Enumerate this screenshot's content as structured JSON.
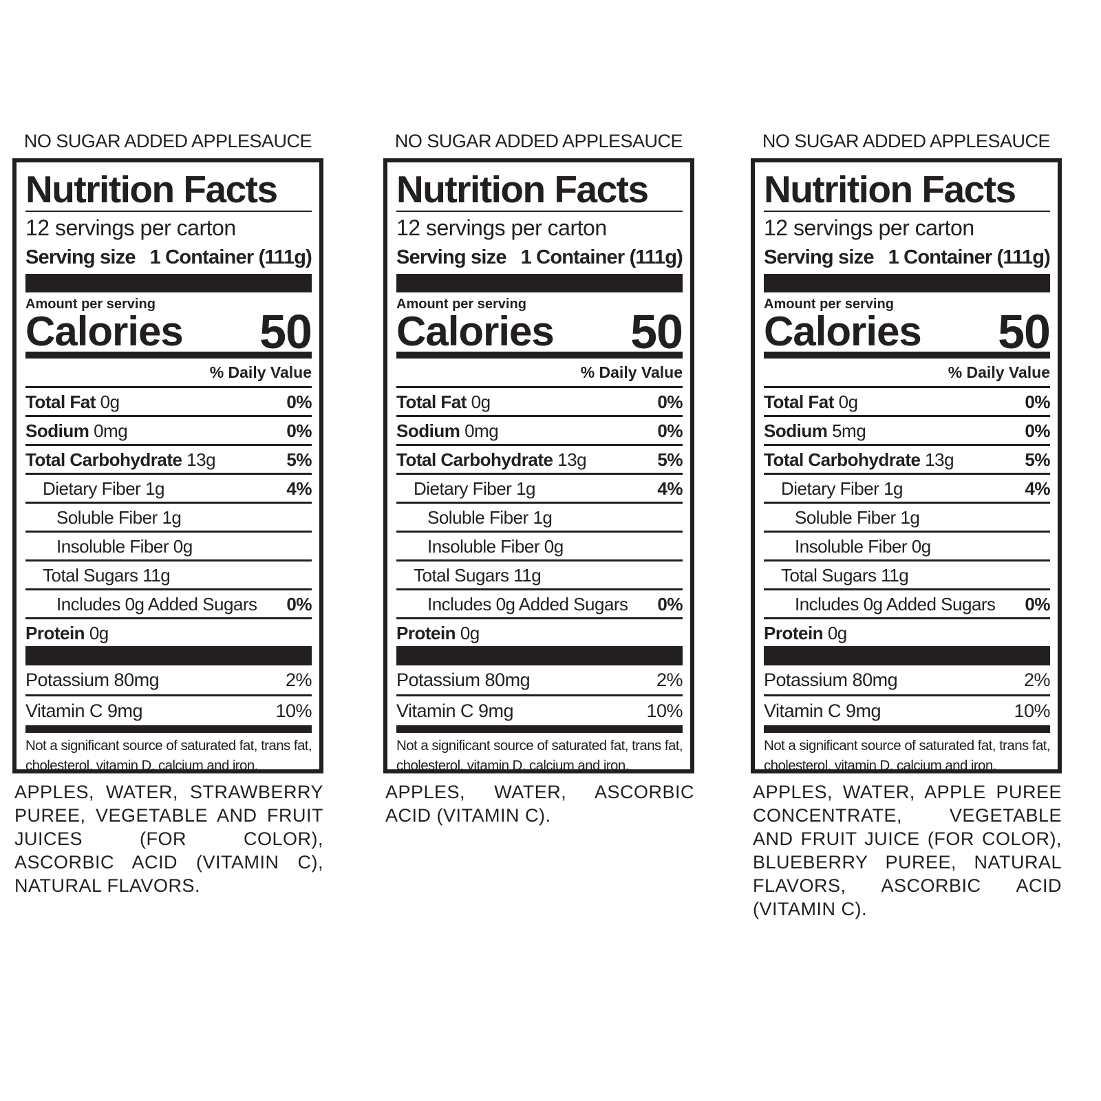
{
  "labels": [
    {
      "heading": "NO SUGAR ADDED APPLESAUCE",
      "title": "Nutrition Facts",
      "servings": "12 servings per carton",
      "serving_size_label": "Serving size",
      "serving_size": "1 Container (111g)",
      "amount_per_serving": "Amount per serving",
      "calories_label": "Calories",
      "calories": "50",
      "daily_value_header": "% Daily Value",
      "nutrients": [
        {
          "name": "Total Fat",
          "amount": "0g",
          "daily_value": "0%"
        },
        {
          "name": "Sodium",
          "amount": "0mg",
          "daily_value": "0%"
        },
        {
          "name": "Total Carbohydrate",
          "amount": "13g",
          "daily_value": "5%"
        },
        {
          "name": "Dietary Fiber",
          "amount": "1g",
          "daily_value": "4%"
        },
        {
          "name": "Soluble Fiber",
          "amount": "1g"
        },
        {
          "name": "Insoluble Fiber",
          "amount": "0g"
        },
        {
          "name": "Total Sugars",
          "amount": "11g"
        },
        {
          "name": "Includes 0g Added Sugars",
          "daily_value": "0%"
        },
        {
          "name": "Protein",
          "amount": "0g"
        }
      ],
      "vitamins": [
        {
          "name": "Potassium 80mg",
          "daily_value": "2%"
        },
        {
          "name": "Vitamin C 9mg",
          "daily_value": "10%"
        }
      ],
      "footnote": "Not a significant source of saturated fat, trans fat, cholesterol, vitamin D, calcium and iron.",
      "ingredients": "APPLES, WATER, STRAWBERRY PUREE, VEGETABLE AND FRUIT JUICES (FOR COLOR), ASCORBIC ACID (VITAMIN C), NATURAL FLAVORS."
    },
    {
      "heading": "NO SUGAR ADDED APPLESAUCE",
      "title": "Nutrition Facts",
      "servings": "12 servings per carton",
      "serving_size_label": "Serving size",
      "serving_size": "1 Container (111g)",
      "amount_per_serving": "Amount per serving",
      "calories_label": "Calories",
      "calories": "50",
      "daily_value_header": "% Daily Value",
      "nutrients": [
        {
          "name": "Total Fat",
          "amount": "0g",
          "daily_value": "0%"
        },
        {
          "name": "Sodium",
          "amount": "0mg",
          "daily_value": "0%"
        },
        {
          "name": "Total Carbohydrate",
          "amount": "13g",
          "daily_value": "5%"
        },
        {
          "name": "Dietary Fiber",
          "amount": "1g",
          "daily_value": "4%"
        },
        {
          "name": "Soluble Fiber",
          "amount": "1g"
        },
        {
          "name": "Insoluble Fiber",
          "amount": "0g"
        },
        {
          "name": "Total Sugars",
          "amount": "11g"
        },
        {
          "name": "Includes 0g Added Sugars",
          "daily_value": "0%"
        },
        {
          "name": "Protein",
          "amount": "0g"
        }
      ],
      "vitamins": [
        {
          "name": "Potassium 80mg",
          "daily_value": "2%"
        },
        {
          "name": "Vitamin C 9mg",
          "daily_value": "10%"
        }
      ],
      "footnote": "Not a significant source of saturated fat, trans fat, cholesterol, vitamin D, calcium and iron.",
      "ingredients": "APPLES, WATER, ASCORBIC ACID (VITAMIN C)."
    },
    {
      "heading": "NO SUGAR ADDED APPLESAUCE",
      "title": "Nutrition Facts",
      "servings": "12 servings per carton",
      "serving_size_label": "Serving size",
      "serving_size": "1 Container (111g)",
      "amount_per_serving": "Amount per serving",
      "calories_label": "Calories",
      "calories": "50",
      "daily_value_header": "% Daily Value",
      "nutrients": [
        {
          "name": "Total Fat",
          "amount": "0g",
          "daily_value": "0%"
        },
        {
          "name": "Sodium",
          "amount": "5mg",
          "daily_value": "0%"
        },
        {
          "name": "Total Carbohydrate",
          "amount": "13g",
          "daily_value": "5%"
        },
        {
          "name": "Dietary Fiber",
          "amount": "1g",
          "daily_value": "4%"
        },
        {
          "name": "Soluble Fiber",
          "amount": "1g"
        },
        {
          "name": "Insoluble Fiber",
          "amount": "0g"
        },
        {
          "name": "Total Sugars",
          "amount": "11g"
        },
        {
          "name": "Includes 0g Added Sugars",
          "daily_value": "0%"
        },
        {
          "name": "Protein",
          "amount": "0g"
        }
      ],
      "vitamins": [
        {
          "name": "Potassium 80mg",
          "daily_value": "2%"
        },
        {
          "name": "Vitamin C 9mg",
          "daily_value": "10%"
        }
      ],
      "footnote": "Not a significant source of saturated fat, trans fat, cholesterol, vitamin D, calcium and iron.",
      "ingredients": "APPLES, WATER, APPLE PUREE CONCENTRATE, VEGETABLE AND FRUIT JUICE (FOR COLOR), BLUEBERRY PUREE, NATURAL FLAVORS, ASCORBIC ACID (VITAMIN C)."
    }
  ]
}
